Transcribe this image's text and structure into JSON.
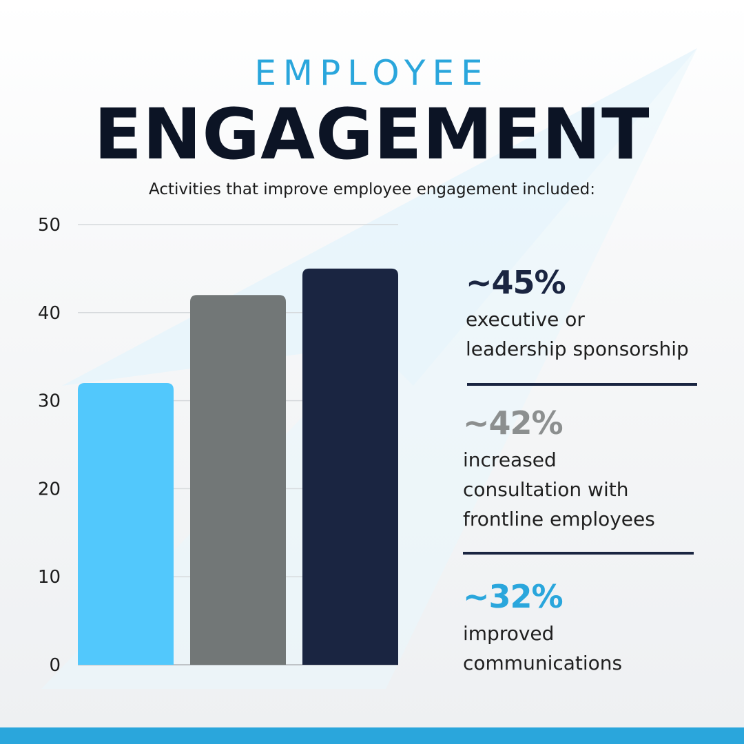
{
  "header": {
    "kicker": "EMPLOYEE",
    "title": "ENGAGEMENT",
    "subtitle": "Activities that improve employee engagement included:"
  },
  "colors": {
    "accent_blue": "#2aa6dc",
    "bar_light_blue": "#52c8fc",
    "bar_gray": "#727777",
    "bar_navy": "#1a2541",
    "text_dark": "#0c1425",
    "stat_gray": "#8c8f8f"
  },
  "chart_data": {
    "type": "bar",
    "categories": [
      "improved communications",
      "increased consultation with frontline employees",
      "executive or leadership sponsorship"
    ],
    "values": [
      32,
      42,
      45
    ],
    "bar_colors": [
      "#52c8fc",
      "#727777",
      "#1a2541"
    ],
    "ylim": [
      0,
      50
    ],
    "yticks": [
      0,
      10,
      20,
      30,
      40,
      50
    ],
    "grid": true
  },
  "stats": [
    {
      "value": "~45%",
      "line1": "executive or",
      "line2": "leadership sponsorship",
      "line3": "",
      "color": "#1a2541"
    },
    {
      "value": "~42%",
      "line1": "increased",
      "line2": "consultation with",
      "line3": "frontline employees",
      "color": "#8c8f8f"
    },
    {
      "value": "~32%",
      "line1": "improved",
      "line2": "communications",
      "line3": "",
      "color": "#2aa6dc"
    }
  ]
}
